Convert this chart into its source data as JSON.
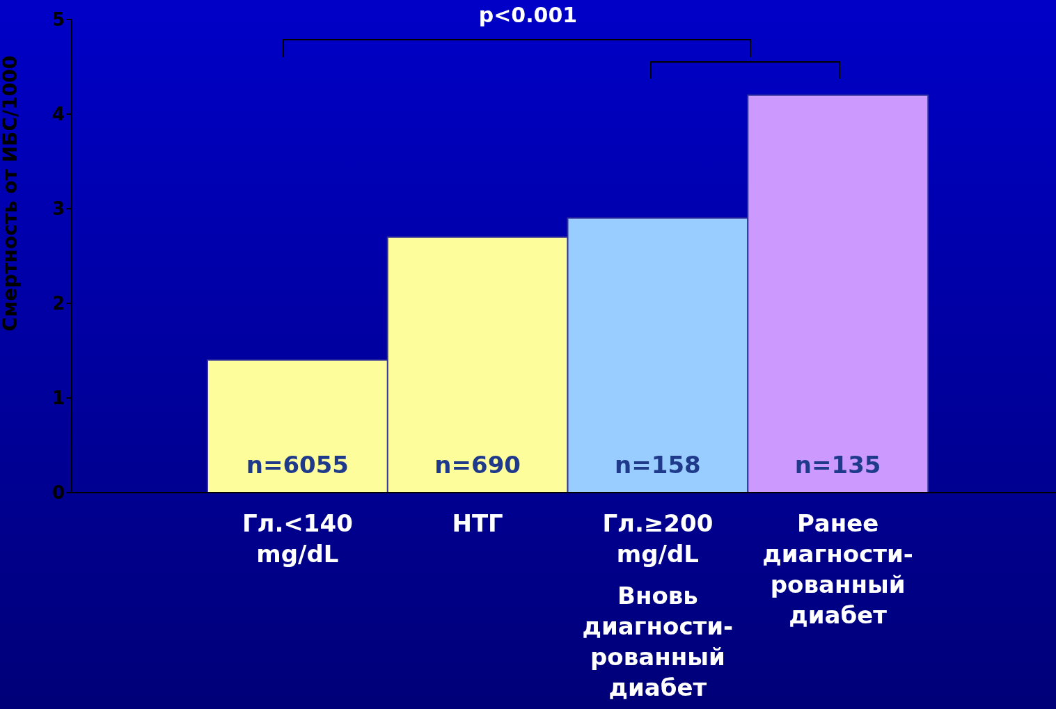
{
  "chart_data": {
    "type": "bar",
    "ylabel": "Смертность от ИБС/1000",
    "categories": [
      "Гл.<140 mg/dL",
      "НТГ",
      "Гл.≥200 mg/dL\nВновь диагности-рованный диабет",
      "Ранее диагности-рованный диабет"
    ],
    "values": [
      1.4,
      2.7,
      2.9,
      4.2
    ],
    "colors": [
      "#fdfd9b",
      "#fdfd9b",
      "#99ccff",
      "#cc99ff"
    ],
    "ylim": [
      0,
      5
    ],
    "yticks": [
      0,
      1,
      2,
      3,
      4,
      5
    ],
    "grid": false,
    "legend": false,
    "annotations": [
      "p<0.001",
      {
        "text": "n=6055",
        "x": "Гл.<140 mg/dL",
        "y": 0
      },
      {
        "text": "n=690",
        "x": "НТГ",
        "y": 0
      },
      {
        "text": "n=158",
        "x": "Гл.≥200 mg/dL\nВновь диагности-рованный диабет",
        "y": 0
      },
      {
        "text": "n=135",
        "x": "Ранее диагности-рованный диабет",
        "y": 0
      }
    ]
  }
}
